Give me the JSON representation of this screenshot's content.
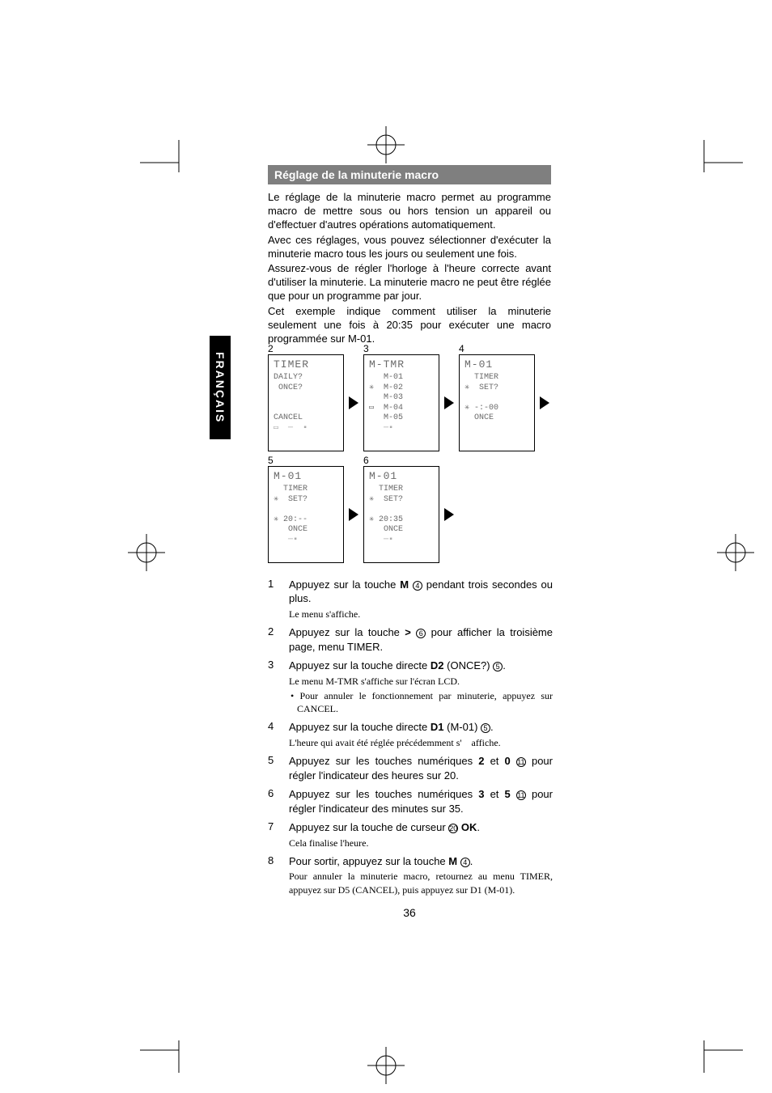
{
  "sidebar": {
    "label": "FRANÇAIS"
  },
  "section": {
    "title": "Réglage de la minuterie macro"
  },
  "intro": {
    "p1": "Le réglage de la minuterie macro permet au programme macro de mettre sous ou hors tension un appareil ou d'effectuer d'autres opérations automatiquement.",
    "p2": "Avec ces réglages, vous pouvez sélectionner d'exécuter la minuterie macro tous les jours ou seulement une fois.",
    "p3": "Assurez-vous de régler l'horloge à l'heure correcte avant d'utiliser la minuterie. La minuterie macro ne peut être réglée que pour un programme par jour.",
    "p4": "Cet exemple indique comment utiliser la minuterie seulement une fois à 20:35 pour exécuter une macro programmée sur M-01."
  },
  "lcds": {
    "labels": [
      "2",
      "3",
      "4",
      "5",
      "6"
    ],
    "screens": [
      {
        "title": "TIMER",
        "lines": [
          "DAILY?",
          " ONCE?",
          "",
          "",
          "CANCEL"
        ],
        "footer": "▭  ─  ▪"
      },
      {
        "title": "M-TMR",
        "lines": [
          "   M-01",
          "✳  M-02",
          "   M-03",
          "▭  M-04",
          "   M-05"
        ],
        "footer": "   ─▪"
      },
      {
        "title": "M-01",
        "lines": [
          "  TIMER",
          "✳  SET?",
          "",
          "✳ -:-00",
          "  ONCE"
        ],
        "footer": ""
      },
      {
        "title": "M-01",
        "lines": [
          "  TIMER",
          "✳  SET?",
          "",
          "✳ 20:--",
          "   ONCE"
        ],
        "footer": "   ─▪"
      },
      {
        "title": "M-01",
        "lines": [
          "  TIMER",
          "✳  SET?",
          "",
          "✳ 20:35",
          "   ONCE"
        ],
        "footer": "   ─▪"
      }
    ]
  },
  "steps": [
    {
      "n": "1",
      "main_a": "Appuyez sur la touche ",
      "b1": "M",
      "ref1": "4",
      "main_b": " pendant trois secondes ou plus.",
      "note": "Le menu s'affiche."
    },
    {
      "n": "2",
      "main_a": "Appuyez sur la touche ",
      "b1": ">",
      "ref1": "6",
      "main_b": " pour afficher la troisième page, menu TIMER."
    },
    {
      "n": "3",
      "main_a": "Appuyez sur la touche directe ",
      "b1": "D2",
      "main_b": " (ONCE?) ",
      "ref2": "5",
      "main_c": ".",
      "note": "Le menu M-TMR s'affiche sur l'écran LCD.",
      "bullet": "Pour annuler le fonctionnement par minuterie, appuyez sur CANCEL."
    },
    {
      "n": "4",
      "main_a": "Appuyez sur la touche directe ",
      "b1": "D1",
      "main_b": " (M-01) ",
      "ref2": "5",
      "main_c": ".",
      "note": "L'heure qui avait été réglée précédemment s'　affiche."
    },
    {
      "n": "5",
      "main_a": "Appuyez sur les touches numériques ",
      "b1": "2",
      "mid": " et ",
      "b2": "0",
      "main_b": " ",
      "ref2": "11",
      "main_c": " pour régler l'indicateur des heures sur 20."
    },
    {
      "n": "6",
      "main_a": "Appuyez sur les touches numériques ",
      "b1": "3",
      "mid": " et ",
      "b2": "5",
      "main_b": " ",
      "ref2": "11",
      "main_c": " pour régler l'indicateur des minutes sur 35."
    },
    {
      "n": "7",
      "main_a": "Appuyez sur la touche de curseur ",
      "ref1": "20",
      "main_b": " ",
      "b1": "OK",
      "main_c": ".",
      "note": "Cela finalise l'heure."
    },
    {
      "n": "8",
      "main_a": "Pour sortir, appuyez sur la touche ",
      "b1": "M",
      "ref1": "4",
      "main_b": ".",
      "note": "Pour annuler la minuterie macro, retournez au menu TIMER, appuyez sur D5 (CANCEL), puis appuyez sur D1 (M-01)."
    }
  ],
  "pagenum": "36",
  "colors": {
    "header_bg": "#7f7f7f",
    "header_fg": "#ffffff",
    "sidebar_bg": "#000000",
    "lcd_text": "#6a6a6a"
  }
}
